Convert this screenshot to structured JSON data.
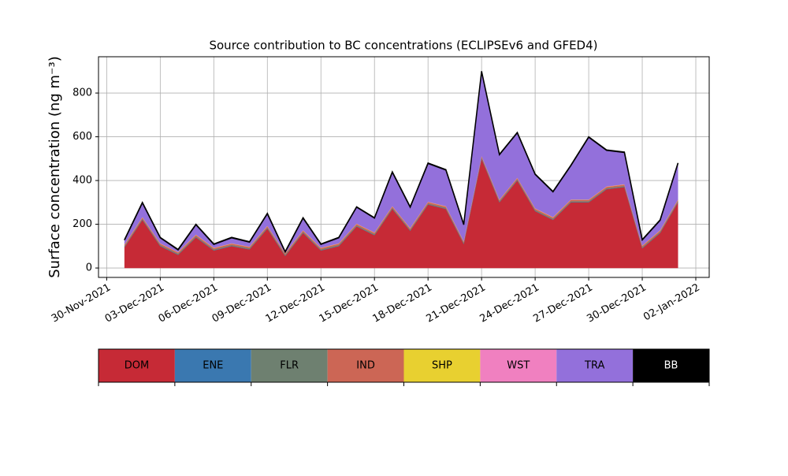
{
  "chart_data": {
    "type": "stacked_area",
    "title": "Source contribution to BC concentrations (ECLIPSEv6 and GFED4)",
    "y_label": "Surface concentration (ng m⁻³)",
    "x": [
      "2021-12-01",
      "2021-12-02",
      "2021-12-03",
      "2021-12-04",
      "2021-12-05",
      "2021-12-06",
      "2021-12-07",
      "2021-12-08",
      "2021-12-09",
      "2021-12-10",
      "2021-12-11",
      "2021-12-12",
      "2021-12-13",
      "2021-12-14",
      "2021-12-15",
      "2021-12-16",
      "2021-12-17",
      "2021-12-18",
      "2021-12-19",
      "2021-12-20",
      "2021-12-21",
      "2021-12-22",
      "2021-12-23",
      "2021-12-24",
      "2021-12-25",
      "2021-12-26",
      "2021-12-27",
      "2021-12-28",
      "2021-12-29",
      "2021-12-30",
      "2021-12-31",
      "2022-01-01"
    ],
    "series": [
      {
        "name": "DOM",
        "color": "#c62a36",
        "values": [
          95,
          220,
          100,
          60,
          140,
          80,
          100,
          85,
          180,
          55,
          160,
          80,
          100,
          190,
          150,
          270,
          170,
          290,
          270,
          110,
          500,
          300,
          400,
          260,
          220,
          300,
          300,
          360,
          370,
          90,
          160,
          300
        ]
      },
      {
        "name": "ENE",
        "color": "#3a78b0",
        "values": [
          1,
          1,
          1,
          1,
          1,
          1,
          1,
          1,
          1,
          1,
          1,
          1,
          1,
          1,
          1,
          1,
          1,
          1,
          1,
          1,
          1,
          1,
          1,
          1,
          1,
          1,
          1,
          1,
          1,
          1,
          1,
          1
        ]
      },
      {
        "name": "FLR",
        "color": "#6e8070",
        "values": [
          4,
          4,
          4,
          4,
          4,
          4,
          4,
          4,
          4,
          4,
          4,
          4,
          4,
          4,
          4,
          4,
          4,
          4,
          4,
          4,
          4,
          4,
          4,
          4,
          4,
          4,
          4,
          4,
          4,
          4,
          4,
          4
        ]
      },
      {
        "name": "IND",
        "color": "#cc6655",
        "values": [
          6,
          6,
          6,
          6,
          6,
          6,
          6,
          6,
          6,
          6,
          6,
          6,
          6,
          6,
          6,
          6,
          6,
          6,
          6,
          6,
          6,
          6,
          6,
          6,
          6,
          6,
          6,
          6,
          6,
          6,
          6,
          6
        ]
      },
      {
        "name": "SHP",
        "color": "#e8d030",
        "values": [
          1,
          1,
          1,
          1,
          1,
          1,
          1,
          1,
          1,
          1,
          1,
          1,
          1,
          1,
          1,
          1,
          1,
          1,
          1,
          1,
          1,
          1,
          1,
          1,
          1,
          1,
          1,
          1,
          1,
          1,
          1,
          1
        ]
      },
      {
        "name": "WST",
        "color": "#f080c0",
        "values": [
          1,
          1,
          1,
          1,
          1,
          1,
          1,
          1,
          1,
          1,
          1,
          1,
          1,
          1,
          1,
          1,
          1,
          1,
          1,
          1,
          1,
          1,
          1,
          1,
          1,
          1,
          1,
          1,
          1,
          1,
          1,
          1
        ]
      },
      {
        "name": "TRA",
        "color": "#9370db",
        "values": [
          20,
          65,
          25,
          10,
          45,
          15,
          25,
          20,
          55,
          5,
          55,
          15,
          25,
          75,
          65,
          155,
          95,
          175,
          165,
          75,
          385,
          205,
          205,
          155,
          115,
          155,
          285,
          165,
          145,
          25,
          45,
          165
        ]
      },
      {
        "name": "BB",
        "color": "#000000",
        "values": [
          2,
          2,
          2,
          2,
          2,
          2,
          2,
          2,
          2,
          2,
          2,
          2,
          2,
          2,
          2,
          2,
          2,
          2,
          2,
          2,
          2,
          2,
          2,
          2,
          2,
          2,
          2,
          2,
          2,
          2,
          2,
          2
        ]
      }
    ],
    "xlim": [
      "2021-11-29T13:00",
      "2022-01-02T18:00"
    ],
    "xticks": [
      {
        "value": "2021-11-30",
        "label": "30-Nov-2021"
      },
      {
        "value": "2021-12-03",
        "label": "03-Dec-2021"
      },
      {
        "value": "2021-12-06",
        "label": "06-Dec-2021"
      },
      {
        "value": "2021-12-09",
        "label": "09-Dec-2021"
      },
      {
        "value": "2021-12-12",
        "label": "12-Dec-2021"
      },
      {
        "value": "2021-12-15",
        "label": "15-Dec-2021"
      },
      {
        "value": "2021-12-18",
        "label": "18-Dec-2021"
      },
      {
        "value": "2021-12-21",
        "label": "21-Dec-2021"
      },
      {
        "value": "2021-12-24",
        "label": "24-Dec-2021"
      },
      {
        "value": "2021-12-27",
        "label": "27-Dec-2021"
      },
      {
        "value": "2021-12-30",
        "label": "30-Dec-2021"
      },
      {
        "value": "2022-01-02",
        "label": "02-Jan-2022"
      }
    ],
    "ylim": [
      -43,
      966
    ],
    "yticks": [
      0,
      200,
      400,
      600,
      800
    ],
    "grid": true
  }
}
